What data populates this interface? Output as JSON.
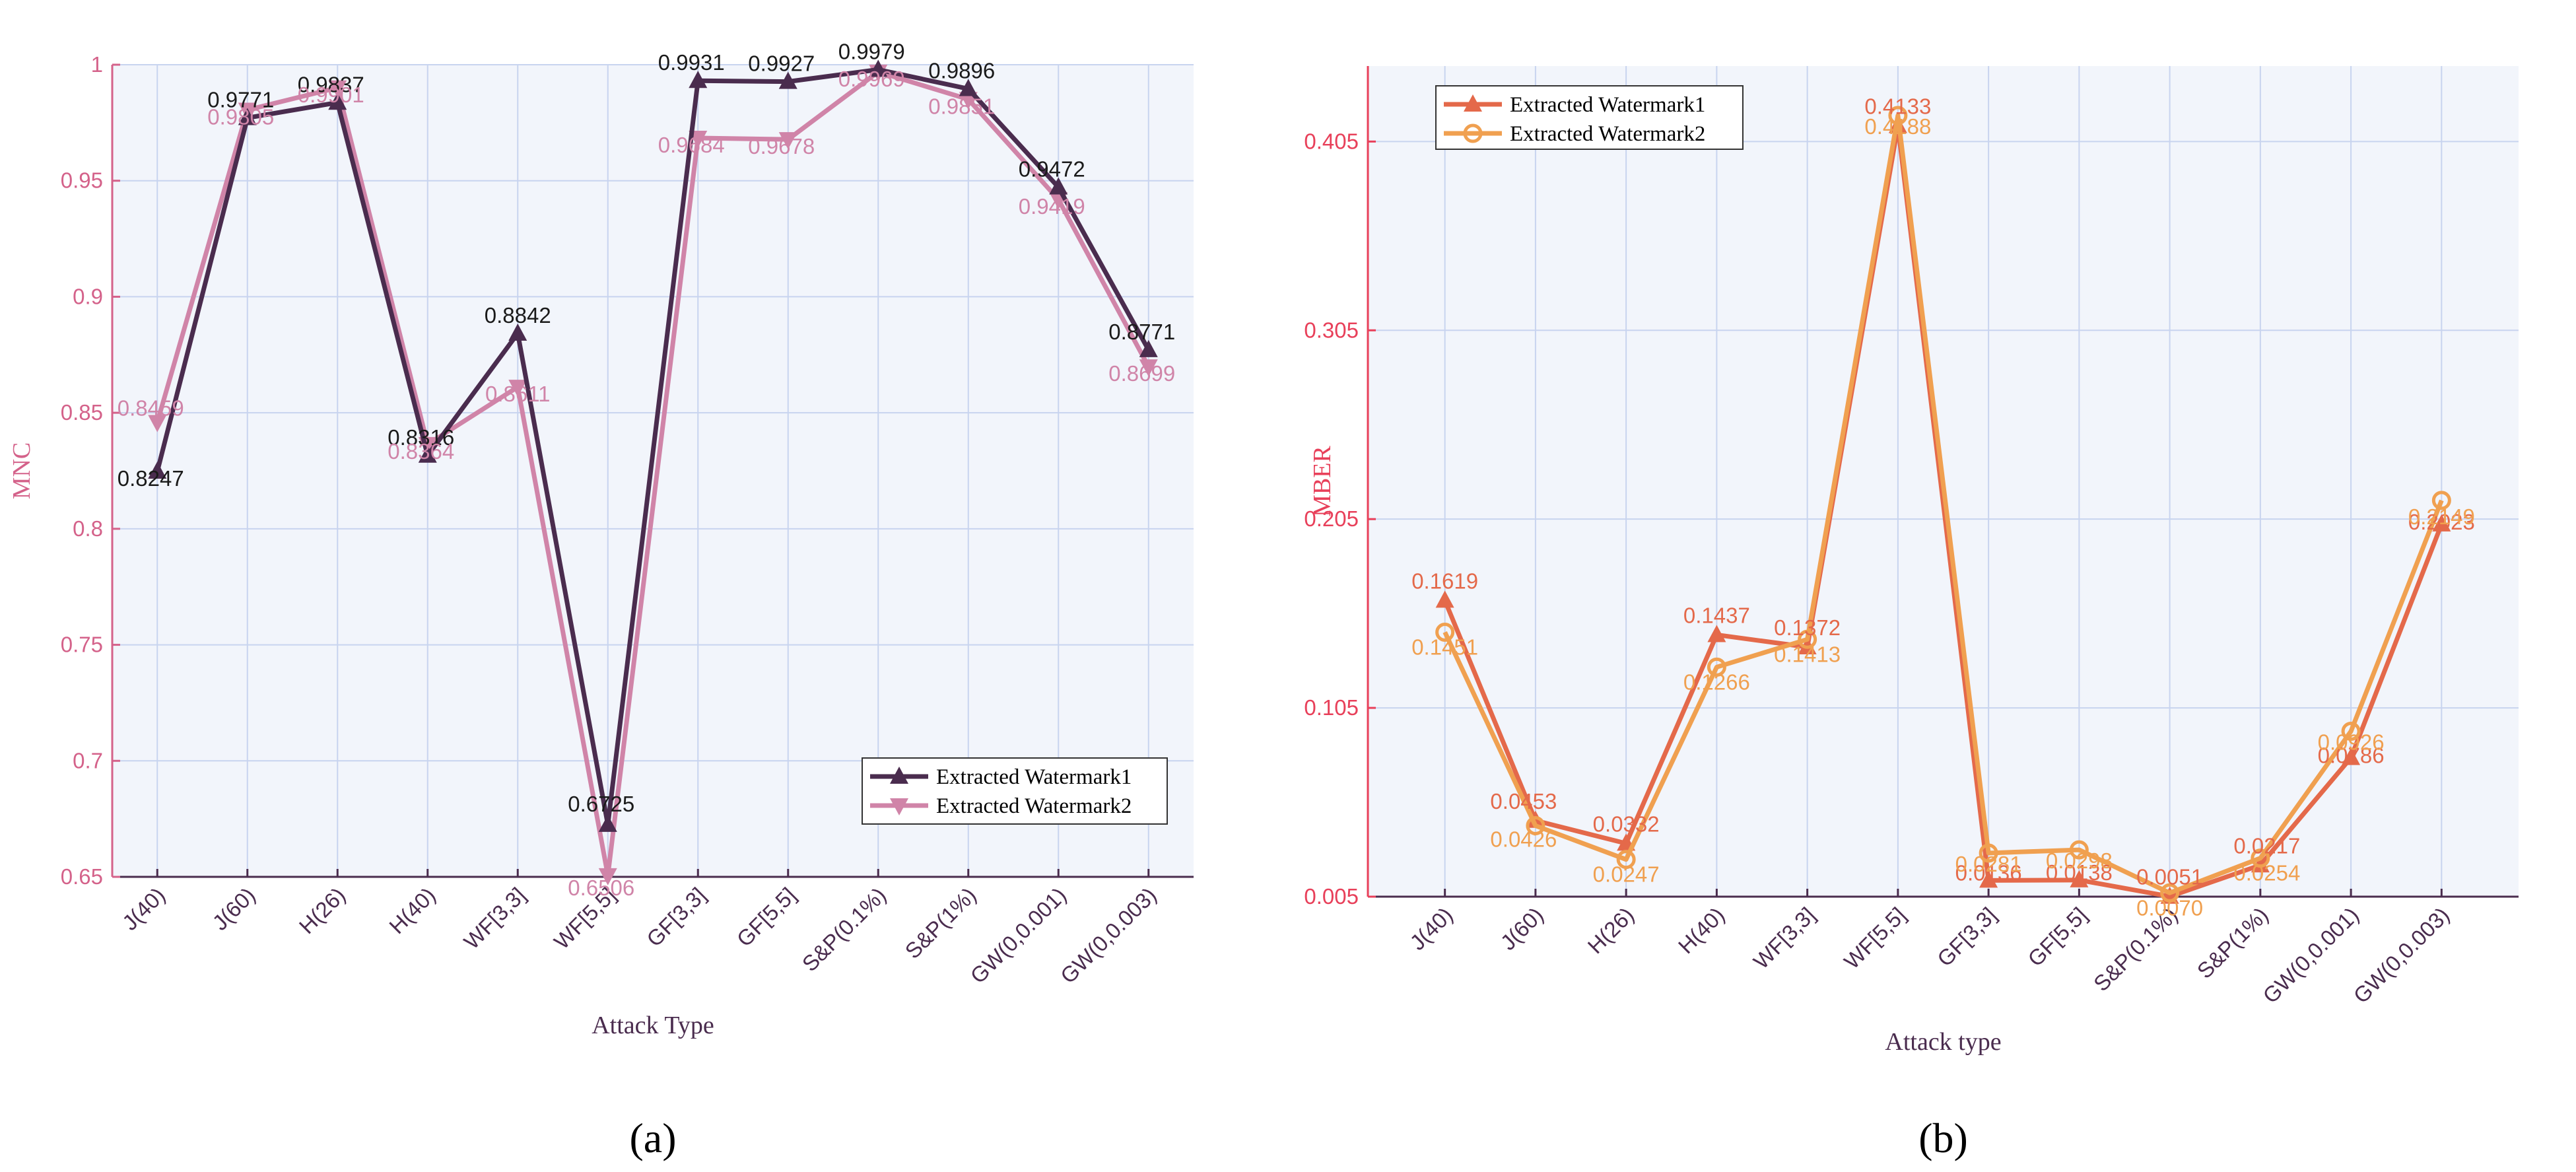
{
  "chart_data": [
    {
      "type": "line",
      "panel_caption": "(a)",
      "xlabel": "Attack Type",
      "ylabel": "MNC",
      "categories": [
        "J(40)",
        "J(60)",
        "H(26)",
        "H(40)",
        "WF[3,3]",
        "WF[5,5]",
        "GF[3,3]",
        "GF[5,5]",
        "S&P(0.1%)",
        "S&P(1%)",
        "GW(0,0.001)",
        "GW(0,0.003)"
      ],
      "ylim": [
        0.65,
        1
      ],
      "yticks": [
        0.65,
        0.7,
        0.75,
        0.8,
        0.85,
        0.9,
        0.95,
        1
      ],
      "ytick_labels": [
        "0.65",
        "0.7",
        "0.75",
        "0.8",
        "0.85",
        "0.9",
        "0.95",
        "1"
      ],
      "grid": true,
      "legend_position": "bottom-right",
      "colors": {
        "axis": "#d4628a",
        "tick_x": "#4a2c4e",
        "grid": "#c8d4ef",
        "bg": "#f2f5fb"
      },
      "series": [
        {
          "name": "Extracted Watermark1",
          "marker": "triangle-up",
          "color": "#4a2c4e",
          "label_color": "#1a1a1a",
          "values": [
            0.8247,
            0.9771,
            0.9837,
            0.8316,
            0.8842,
            0.6725,
            0.9931,
            0.9927,
            0.9979,
            0.9896,
            0.9472,
            0.8771
          ],
          "labels": [
            "0.8247",
            "0.9771",
            "0.9837",
            "0.8316",
            "0.8842",
            "0.6725",
            "0.9931",
            "0.9927",
            "0.9979",
            "0.9896",
            "0.9472",
            "0.8771"
          ]
        },
        {
          "name": "Extracted Watermark2",
          "marker": "triangle-down",
          "color": "#d084a8",
          "label_color": "#d084a8",
          "values": [
            0.8459,
            0.9805,
            0.9901,
            0.8364,
            0.8611,
            0.6506,
            0.9684,
            0.9678,
            0.9969,
            0.9851,
            0.9419,
            0.8699
          ],
          "labels": [
            "0.8459",
            "0.9805",
            "0.9901",
            "0.8364",
            "0.8611",
            "0.6506",
            "0.9684",
            "0.9678",
            "0.9969",
            "0.9851",
            "0.9419",
            "0.8699"
          ]
        }
      ]
    },
    {
      "type": "line",
      "panel_caption": "(b)",
      "xlabel": "Attack type",
      "ylabel": "MBER",
      "categories": [
        "J(40)",
        "J(60)",
        "H(26)",
        "H(40)",
        "WF[3,3]",
        "WF[5,5]",
        "GF[3,3]",
        "GF[5,5]",
        "S&P(0.1%)",
        "S&P(1%)",
        "GW(0,0.001)",
        "GW(0,0.003)"
      ],
      "ylim": [
        0.005,
        0.445
      ],
      "yticks": [
        0.005,
        0.105,
        0.205,
        0.305,
        0.405
      ],
      "ytick_labels": [
        "0.005",
        "0.105",
        "0.205",
        "0.305",
        "0.405"
      ],
      "grid": true,
      "legend_position": "top-left",
      "colors": {
        "axis": "#e8405a",
        "tick_x": "#4a2c4e",
        "grid": "#c8d4ef",
        "bg": "#f2f5fb"
      },
      "series": [
        {
          "name": "Extracted Watermark1",
          "marker": "triangle-up",
          "color": "#e4694a",
          "label_color": "#e4694a",
          "values": [
            0.1619,
            0.0453,
            0.0332,
            0.1437,
            0.1372,
            0.4133,
            0.0136,
            0.0138,
            0.0051,
            0.0217,
            0.0786,
            0.2023
          ],
          "labels": [
            "0.1619",
            "0.0453",
            "0.0332",
            "0.1437",
            "0.1372",
            "0.4133",
            "0.0136",
            "0.0138",
            "0.0051",
            "0.0217",
            "0.0786",
            "0.2023"
          ]
        },
        {
          "name": "Extracted Watermark2",
          "marker": "circle",
          "color": "#f0a050",
          "label_color": "#f0a050",
          "values": [
            0.1451,
            0.0426,
            0.0247,
            0.1266,
            0.1413,
            0.4188,
            0.0281,
            0.0298,
            0.007,
            0.0254,
            0.0926,
            0.2149
          ],
          "labels": [
            "0.1451",
            "0.0426",
            "0.0247",
            "0.1266",
            "0.1413",
            "0.4188",
            "0.0281",
            "0.0298",
            "0.0070",
            "0.0254",
            "0.0926",
            "0.2149"
          ]
        }
      ]
    }
  ]
}
